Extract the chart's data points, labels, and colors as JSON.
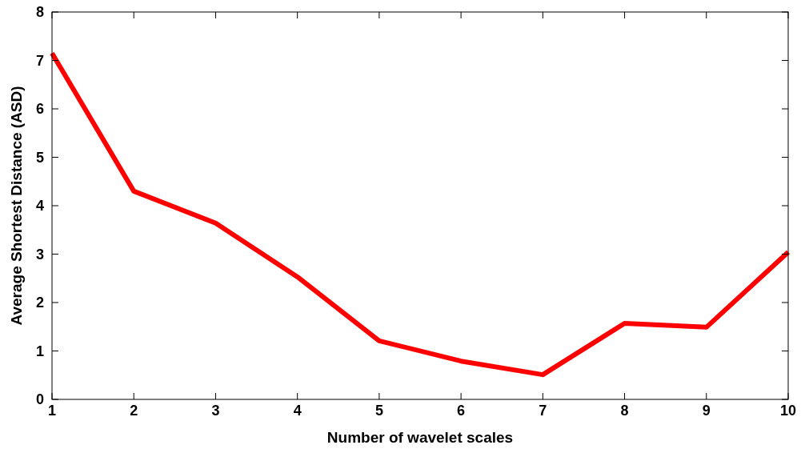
{
  "chart_data": {
    "type": "line",
    "xlabel": "Number of wavelet scales",
    "ylabel": "Average Shortest Distance (ASD)",
    "x": [
      1,
      2,
      3,
      4,
      5,
      6,
      7,
      8,
      9,
      10
    ],
    "series": [
      {
        "color": "#ff0000",
        "values": [
          7.15,
          4.3,
          3.64,
          2.53,
          1.21,
          0.79,
          0.51,
          1.57,
          1.49,
          3.04
        ]
      }
    ],
    "xlim": [
      1,
      10
    ],
    "xticks": [
      1,
      2,
      3,
      4,
      5,
      6,
      7,
      8,
      9,
      10
    ],
    "ylim": [
      0,
      8
    ],
    "yticks": [
      0,
      1,
      2,
      3,
      4,
      5,
      6,
      7,
      8
    ],
    "grid": false,
    "marker": "none",
    "line_style": "solid"
  }
}
